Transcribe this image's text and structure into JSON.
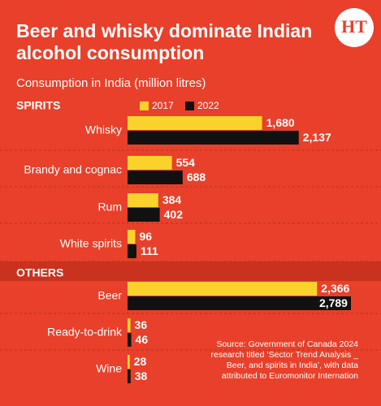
{
  "logo": "HT",
  "chart_data": [
    {
      "type": "bar",
      "title": "Beer and whisky dominate Indian alcohol consumption",
      "subtitle": "Consumption in India (million litres)",
      "group": "SPIRITS",
      "categories": [
        "Whisky",
        "Brandy and cognac",
        "Rum",
        "White spirits"
      ],
      "series": [
        {
          "name": "2017",
          "color": "#fbd22c",
          "values": [
            1680,
            554,
            384,
            96
          ],
          "value_labels": [
            "1,680",
            "554",
            "384",
            "96"
          ]
        },
        {
          "name": "2022",
          "color": "#111111",
          "values": [
            2137,
            688,
            402,
            111
          ],
          "value_labels": [
            "2,137",
            "688",
            "402",
            "111"
          ]
        }
      ]
    },
    {
      "type": "bar",
      "group": "OTHERS",
      "categories": [
        "Beer",
        "Ready-to-drink",
        "Wine"
      ],
      "series": [
        {
          "color": "#fbd22c",
          "values": [
            2366,
            36,
            28
          ],
          "value_labels": [
            "2,366",
            "36",
            "28"
          ]
        },
        {
          "color": "#111111",
          "values": [
            2789,
            46,
            38
          ],
          "value_labels": [
            "2,789",
            "46",
            "38"
          ]
        }
      ],
      "source": "Source: Government of Canada 2024 research titled ‘Sector Trend Analysis _ Beer, and spirits in India’, with data attributed to Euromonitor Internation"
    }
  ]
}
